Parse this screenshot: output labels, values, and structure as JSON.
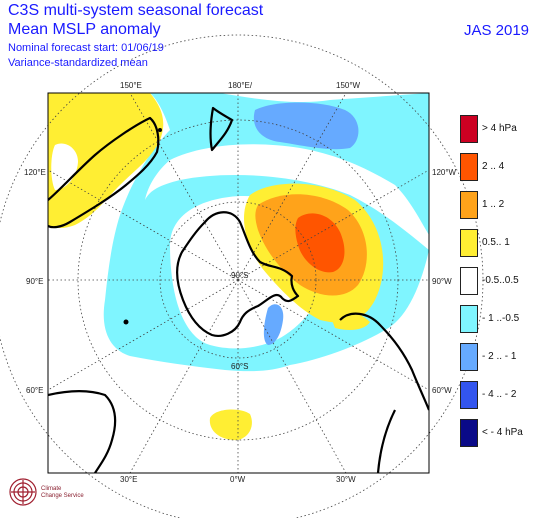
{
  "header": {
    "title": "C3S multi-system seasonal forecast",
    "variable": "Mean MSLP anomaly",
    "start": "Nominal forecast start: 01/06/19",
    "method": "Variance-standardized mean",
    "season": "JAS 2019"
  },
  "map": {
    "projection": "south-polar-stereographic",
    "lon_labels": [
      "150°E",
      "180°E/",
      "150°W",
      "120°E",
      "120°W",
      "90°E",
      "90°W",
      "60°E",
      "60°W",
      "30°E",
      "0°W",
      "30°W"
    ],
    "lat_labels": [
      "90°S",
      "60°S"
    ],
    "colors": {
      "land": "#ffffff",
      "coast": "#000000",
      "grid": "#444444"
    }
  },
  "legend": [
    {
      "label": ">  4 hPa",
      "color": "#cc0022"
    },
    {
      "label": "2 .. 4",
      "color": "#ff5500"
    },
    {
      "label": "1 .. 2",
      "color": "#ffa31a"
    },
    {
      "label": "0.5.. 1",
      "color": "#ffee33"
    },
    {
      "label": "-0.5..0.5",
      "color": "#ffffff"
    },
    {
      "label": "- 1 ..-0.5",
      "color": "#7ff5ff"
    },
    {
      "label": "- 2 .. - 1",
      "color": "#66aaff"
    },
    {
      "label": "- 4 .. - 2",
      "color": "#3355ee"
    },
    {
      "label": "< - 4 hPa",
      "color": "#0a0a88"
    }
  ],
  "logo": {
    "line1": "Climate",
    "line2": "Change Service"
  }
}
